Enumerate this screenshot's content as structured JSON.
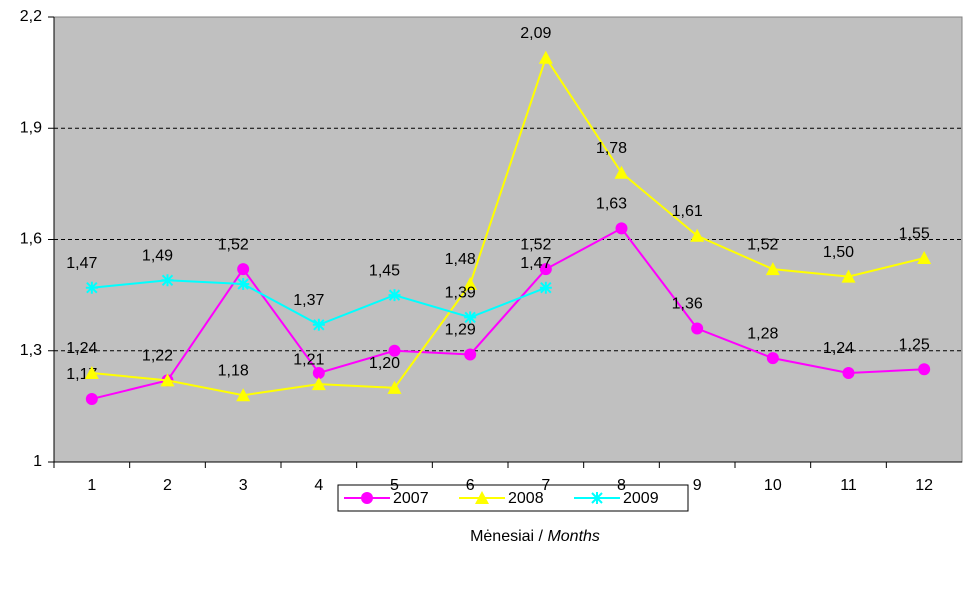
{
  "chart_data": {
    "type": "line",
    "categories": [
      "1",
      "2",
      "3",
      "4",
      "5",
      "6",
      "7",
      "8",
      "9",
      "10",
      "11",
      "12"
    ],
    "x_label": [
      "Mėnesiai /",
      "Months"
    ],
    "ylim": [
      1,
      2.2
    ],
    "yticks": [
      1,
      {
        "value": 1.3,
        "label": "1,3"
      },
      {
        "value": 1.6,
        "label": "1,6"
      },
      {
        "value": 1.9,
        "label": "1,9"
      },
      {
        "value": 2.2,
        "label": "2,2"
      }
    ],
    "grid": true,
    "legend": "bottom",
    "series": [
      {
        "name": "2007",
        "color": "#ff00ff",
        "marker": "circle",
        "values": [
          1.17,
          1.22,
          1.52,
          1.24,
          1.3,
          1.29,
          1.52,
          1.63,
          1.36,
          1.28,
          1.24,
          1.25
        ],
        "value_labels": [
          "1,17",
          "1,22",
          "1,52",
          null,
          null,
          "1,29",
          "1,52",
          "1,63",
          "1,36",
          "1,28",
          "1,24",
          "1,25"
        ]
      },
      {
        "name": "2008",
        "color": "#ffff00",
        "marker": "triangle",
        "values": [
          1.24,
          1.22,
          1.18,
          1.21,
          1.2,
          1.48,
          2.09,
          1.78,
          1.61,
          1.52,
          1.5,
          1.55
        ],
        "value_labels": [
          "1,24",
          null,
          "1,18",
          "1,21",
          "1,20",
          "1,48",
          "2,09",
          "1,78",
          "1,61",
          "1,52",
          "1,50",
          "1,55"
        ]
      },
      {
        "name": "2009",
        "color": "#00ffff",
        "marker": "asterisk",
        "values": [
          1.47,
          1.49,
          1.48,
          1.37,
          1.45,
          1.39,
          1.47,
          null,
          null,
          null,
          null,
          null
        ],
        "value_labels": [
          "1,47",
          "1,49",
          null,
          "1,37",
          "1,45",
          "1,39",
          "1,47",
          null,
          null,
          null,
          null,
          null
        ]
      }
    ]
  }
}
